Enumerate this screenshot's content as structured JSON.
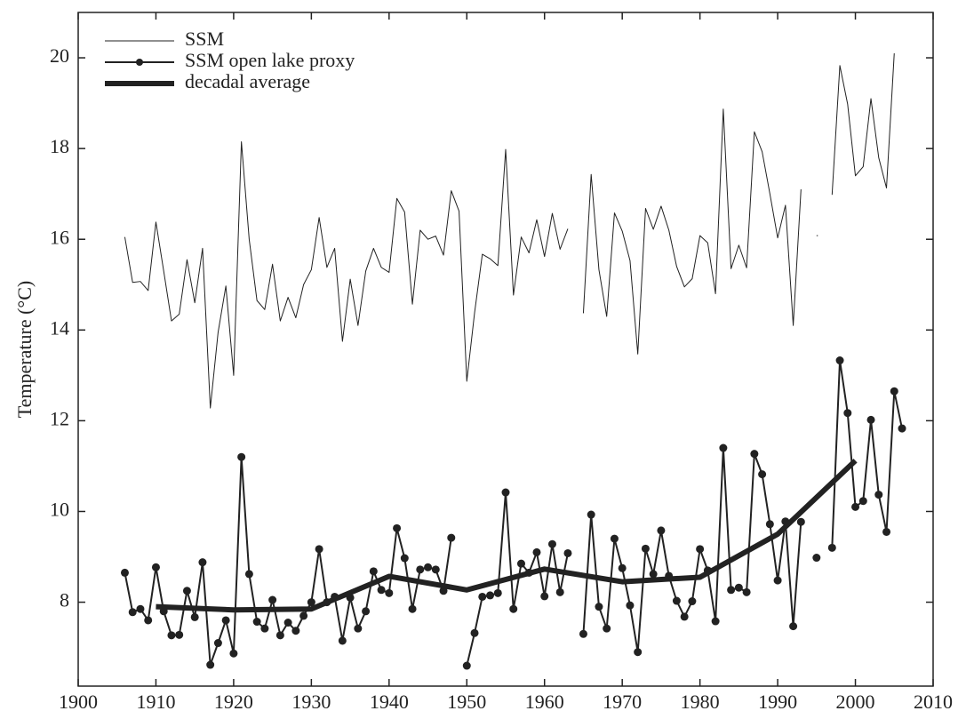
{
  "chart_data": {
    "type": "line",
    "y_label": "Temperature (°C)",
    "x": [
      1906,
      1907,
      1908,
      1909,
      1910,
      1911,
      1912,
      1913,
      1914,
      1915,
      1916,
      1917,
      1918,
      1919,
      1920,
      1921,
      1922,
      1923,
      1924,
      1925,
      1926,
      1927,
      1928,
      1929,
      1930,
      1931,
      1932,
      1933,
      1934,
      1935,
      1936,
      1937,
      1938,
      1939,
      1940,
      1941,
      1942,
      1943,
      1944,
      1945,
      1946,
      1947,
      1948,
      1949,
      1950,
      1951,
      1952,
      1953,
      1954,
      1955,
      1956,
      1957,
      1958,
      1959,
      1960,
      1961,
      1962,
      1963,
      1964,
      1965,
      1966,
      1967,
      1968,
      1969,
      1970,
      1971,
      1972,
      1973,
      1974,
      1975,
      1976,
      1977,
      1978,
      1979,
      1980,
      1981,
      1982,
      1983,
      1984,
      1985,
      1986,
      1987,
      1988,
      1989,
      1990,
      1991,
      1992,
      1993,
      1994,
      1995,
      1996,
      1997,
      1998,
      1999,
      2000,
      2001,
      2002,
      2003,
      2004,
      2005,
      2006
    ],
    "series": [
      {
        "name": "SSM",
        "color": "#222222",
        "line_width": 1,
        "markers": false,
        "values": [
          16.05,
          15.05,
          15.07,
          14.87,
          16.38,
          15.3,
          14.2,
          14.35,
          15.55,
          14.6,
          15.8,
          12.28,
          13.95,
          14.97,
          13.0,
          18.15,
          16.0,
          14.65,
          14.45,
          15.45,
          14.2,
          14.72,
          14.27,
          15.0,
          15.33,
          16.48,
          15.38,
          15.8,
          13.75,
          15.12,
          14.1,
          15.3,
          15.8,
          15.38,
          15.27,
          16.9,
          16.6,
          14.57,
          16.2,
          16.0,
          16.07,
          15.65,
          17.07,
          16.62,
          12.87,
          14.38,
          15.67,
          15.57,
          15.42,
          17.98,
          14.77,
          16.05,
          15.7,
          16.43,
          15.62,
          16.57,
          15.78,
          16.23,
          null,
          14.37,
          17.43,
          15.33,
          14.3,
          16.58,
          16.18,
          15.53,
          13.47,
          16.68,
          16.22,
          16.73,
          16.2,
          15.4,
          14.95,
          15.13,
          16.08,
          15.92,
          14.8,
          18.87,
          15.35,
          15.87,
          15.37,
          18.37,
          17.93,
          17.0,
          16.03,
          16.75,
          14.1,
          17.1,
          null,
          16.08,
          null,
          16.98,
          19.83,
          18.98,
          17.4,
          17.6,
          19.1,
          17.8,
          17.13,
          20.1,
          null
        ]
      },
      {
        "name": "SSM open lake proxy",
        "color": "#222222",
        "line_width": 2,
        "markers": true,
        "values": [
          8.65,
          7.78,
          7.85,
          7.6,
          8.77,
          7.8,
          7.27,
          7.28,
          8.25,
          7.67,
          8.88,
          6.62,
          7.1,
          7.6,
          6.87,
          11.2,
          8.62,
          7.57,
          7.42,
          8.05,
          7.27,
          7.55,
          7.37,
          7.7,
          8.0,
          9.17,
          8.0,
          8.12,
          7.15,
          8.1,
          7.42,
          7.8,
          8.68,
          8.27,
          8.2,
          9.63,
          8.97,
          7.85,
          8.72,
          8.77,
          8.72,
          8.25,
          9.42,
          null,
          6.6,
          7.32,
          8.12,
          8.15,
          8.2,
          10.42,
          7.85,
          8.85,
          8.65,
          9.1,
          8.13,
          9.28,
          8.22,
          9.08,
          null,
          7.3,
          9.93,
          7.9,
          7.42,
          9.4,
          8.75,
          7.93,
          6.9,
          9.18,
          8.62,
          9.58,
          8.58,
          8.03,
          7.68,
          8.02,
          9.17,
          8.7,
          7.58,
          11.4,
          8.27,
          8.32,
          8.22,
          11.27,
          10.82,
          9.72,
          8.48,
          9.78,
          7.47,
          9.77,
          null,
          8.98,
          null,
          9.2,
          13.33,
          12.17,
          10.1,
          10.23,
          12.02,
          10.37,
          9.55,
          12.65,
          11.83
        ]
      },
      {
        "name": "decadal average",
        "color": "#222222",
        "line_width": 6,
        "markers": false,
        "x": [
          1910,
          1920,
          1930,
          1940,
          1950,
          1960,
          1970,
          1980,
          1990,
          2000
        ],
        "values": [
          7.9,
          7.83,
          7.85,
          8.57,
          8.27,
          8.73,
          8.45,
          8.55,
          9.5,
          11.12
        ]
      }
    ],
    "xlim": [
      1900,
      2010
    ],
    "xticks": [
      1900,
      1910,
      1920,
      1930,
      1940,
      1950,
      1960,
      1970,
      1980,
      1990,
      2000,
      2010
    ],
    "ylim": [
      6.15,
      21
    ],
    "yticks": [
      8,
      10,
      12,
      14,
      16,
      18,
      20
    ],
    "legend": "upper left",
    "grid": false
  }
}
